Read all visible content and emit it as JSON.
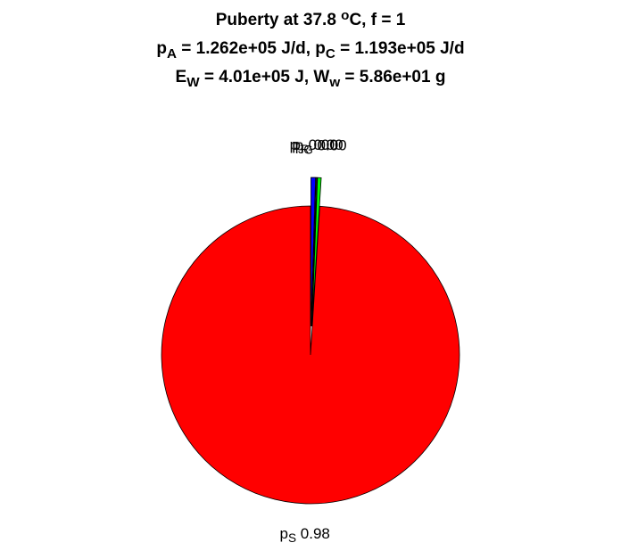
{
  "chart_data": {
    "type": "pie",
    "title": [
      [
        {
          "text": "Puberty at 37.8 "
        },
        {
          "text": "o",
          "shift": "super"
        },
        {
          "text": "C, f = 1"
        }
      ],
      [
        {
          "text": "p"
        },
        {
          "text": "A",
          "shift": "sub"
        },
        {
          "text": " = 1.262e+05 J/d,  p"
        },
        {
          "text": "C",
          "shift": "sub"
        },
        {
          "text": " = 1.193e+05 J/d"
        }
      ],
      [
        {
          "text": "E"
        },
        {
          "text": "W",
          "shift": "sub"
        },
        {
          "text": " = 4.01e+05 J, W"
        },
        {
          "text": "w",
          "shift": "sub"
        },
        {
          "text": " = 5.86e+01 g"
        }
      ]
    ],
    "slices": [
      {
        "symbol": "p",
        "subscript": "J",
        "value": 0.0049,
        "value_label": "0.00",
        "color": "#0000ff",
        "explode": true
      },
      {
        "symbol": "p",
        "subscript": "R",
        "value": 0.001,
        "value_label": "0.00",
        "color": "#7f3f9f",
        "explode": true
      },
      {
        "symbol": "p",
        "subscript": "G",
        "value": 0.004,
        "value_label": "0.00",
        "color": "#00ff00",
        "explode": true
      },
      {
        "symbol": "p",
        "subscript": "S",
        "value": 0.9841,
        "value_label": "0.98",
        "color": "#ff0000",
        "explode": false
      }
    ]
  }
}
